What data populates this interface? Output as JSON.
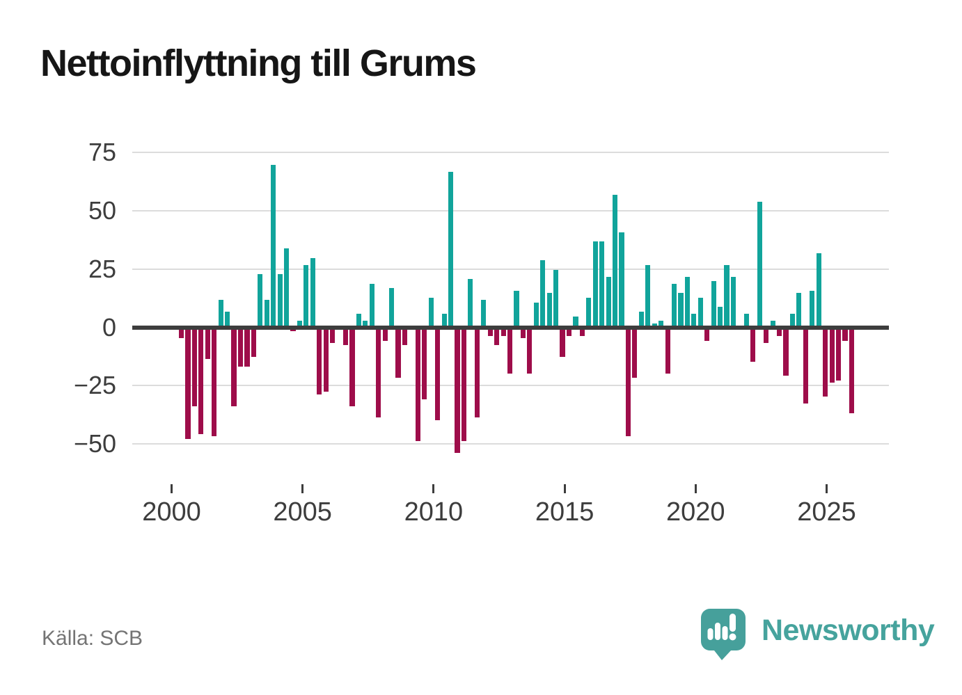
{
  "title": "Nettoinflyttning till Grums",
  "source": "Källa: SCB",
  "branding": {
    "logo_text": "Newsworthy",
    "logo_color": "#46a09b",
    "wordmark_color": "#46a39d"
  },
  "colors": {
    "positive_bar": "#11a49b",
    "negative_bar": "#9e0d4a",
    "grid": "#dcdcdc",
    "zero_line": "#3d3d3d",
    "axis_text": "#3d3d3d",
    "title_text": "#161616",
    "source_text": "#747474",
    "background": "#ffffff"
  },
  "chart_data": {
    "type": "bar",
    "title": "Nettoinflyttning till Grums",
    "frequency": "quarterly",
    "start_year": 2000,
    "start_quarter": 2,
    "values": [
      -5,
      -48,
      -34,
      -46,
      -14,
      -47,
      12,
      7,
      -34,
      -17,
      -17,
      -13,
      23,
      12,
      70,
      23,
      34,
      -2,
      3,
      27,
      30,
      -29,
      -28,
      -7,
      1,
      -8,
      -34,
      6,
      3,
      19,
      -39,
      -6,
      17,
      -22,
      -8,
      0,
      -49,
      -31,
      13,
      -40,
      6,
      67,
      -54,
      -49,
      21,
      -39,
      12,
      -4,
      -8,
      -4,
      -20,
      16,
      -5,
      -20,
      11,
      29,
      15,
      25,
      -13,
      -4,
      5,
      -4,
      13,
      37,
      37,
      22,
      57,
      41,
      -47,
      -22,
      7,
      27,
      2,
      3,
      -20,
      19,
      15,
      22,
      6,
      13,
      -6,
      20,
      9,
      27,
      22,
      1,
      6,
      -15,
      54,
      -7,
      3,
      -4,
      -21,
      6,
      15,
      -33,
      16,
      32,
      -30,
      -24,
      -23,
      -6,
      -37
    ],
    "y_ticks": [
      {
        "value": 75,
        "label": "75"
      },
      {
        "value": 50,
        "label": "50"
      },
      {
        "value": 25,
        "label": "25"
      },
      {
        "value": 0,
        "label": "0"
      },
      {
        "value": -25,
        "label": "−25"
      },
      {
        "value": -50,
        "label": "−50"
      }
    ],
    "x_ticks": [
      {
        "year": 2000,
        "label": "2000"
      },
      {
        "year": 2005,
        "label": "2005"
      },
      {
        "year": 2010,
        "label": "2010"
      },
      {
        "year": 2015,
        "label": "2015"
      },
      {
        "year": 2020,
        "label": "2020"
      },
      {
        "year": 2025,
        "label": "2025"
      }
    ],
    "ylim": [
      -57,
      75
    ],
    "grid": true,
    "legend": false
  }
}
